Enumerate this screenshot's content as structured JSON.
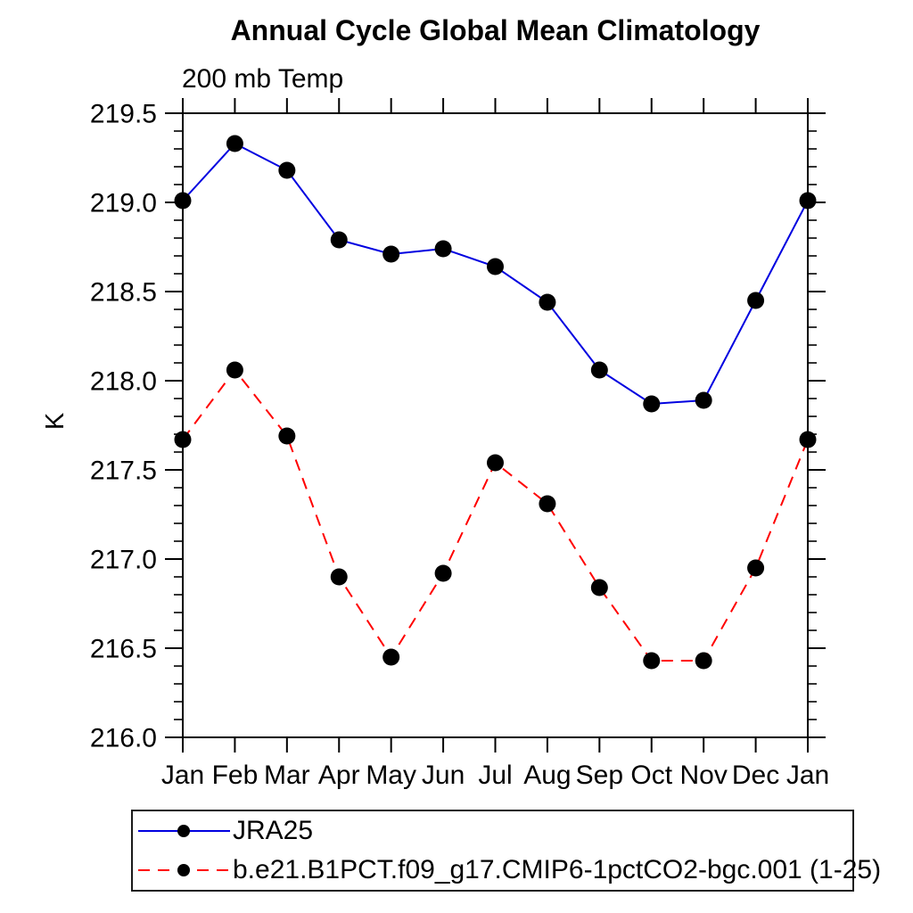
{
  "chart_data": {
    "type": "line",
    "title": "Annual Cycle Global Mean Climatology",
    "subtitle": "200 mb Temp",
    "ylabel": "K",
    "xlabel": "",
    "categories": [
      "Jan",
      "Feb",
      "Mar",
      "Apr",
      "May",
      "Jun",
      "Jul",
      "Aug",
      "Sep",
      "Oct",
      "Nov",
      "Dec",
      "Jan"
    ],
    "ylim": [
      216.0,
      219.5
    ],
    "y_major_ticks": [
      "216.0",
      "216.5",
      "217.0",
      "217.5",
      "218.0",
      "218.5",
      "219.0",
      "219.5"
    ],
    "y_major_step": 0.5,
    "y_minor_step": 0.1,
    "grid": false,
    "legend_position": "bottom-left",
    "axis_color": "#000000",
    "text_color": "#000000",
    "marker_color": "#000000",
    "series": [
      {
        "name": "JRA25",
        "color": "#0000e0",
        "style": "solid",
        "marker": "circle",
        "values": [
          219.01,
          219.33,
          219.18,
          218.79,
          218.71,
          218.74,
          218.64,
          218.44,
          218.06,
          217.87,
          217.89,
          218.45,
          219.01
        ]
      },
      {
        "name": "b.e21.B1PCT.f09_g17.CMIP6-1pctCO2-bgc.001 (1-25)",
        "color": "#ff0000",
        "style": "dashed",
        "marker": "circle",
        "values": [
          217.67,
          218.06,
          217.69,
          216.9,
          216.45,
          216.92,
          217.54,
          217.31,
          216.84,
          216.43,
          216.43,
          216.95,
          217.67
        ]
      }
    ]
  }
}
